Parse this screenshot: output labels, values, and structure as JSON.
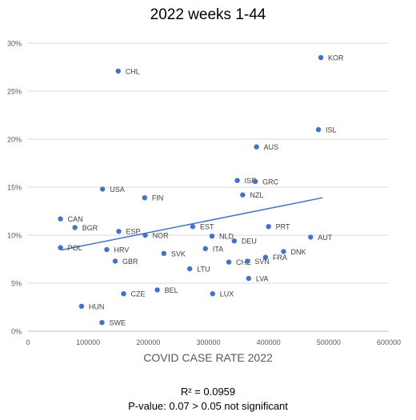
{
  "chart_data": {
    "type": "scatter",
    "title": "2022 weeks 1-44",
    "xlabel": "COVID CASE RATE 2022",
    "ylabel": "",
    "xlim": [
      0,
      600000
    ],
    "ylim": [
      0,
      0.3
    ],
    "x_ticks": [
      {
        "value": 0,
        "label": "0"
      },
      {
        "value": 100000,
        "label": "100000"
      },
      {
        "value": 200000,
        "label": "200000"
      },
      {
        "value": 300000,
        "label": "300000"
      },
      {
        "value": 400000,
        "label": "400000"
      },
      {
        "value": 500000,
        "label": "500000"
      },
      {
        "value": 600000,
        "label": "600000"
      }
    ],
    "y_ticks": [
      {
        "value": 0,
        "label": "0%"
      },
      {
        "value": 0.05,
        "label": "5%"
      },
      {
        "value": 0.1,
        "label": "10%"
      },
      {
        "value": 0.15,
        "label": "15%"
      },
      {
        "value": 0.2,
        "label": "20%"
      },
      {
        "value": 0.25,
        "label": "25%"
      },
      {
        "value": 0.3,
        "label": "30%"
      }
    ],
    "grid": "horizontal",
    "point_color": "#4472C4",
    "trendline_color": "#4472C4",
    "trendline": {
      "x": [
        55000,
        490000
      ],
      "y": [
        0.0845,
        0.139
      ]
    },
    "points": [
      {
        "label": "KOR",
        "x": 487000,
        "y": 0.285
      },
      {
        "label": "CHL",
        "x": 150000,
        "y": 0.271
      },
      {
        "label": "ISL",
        "x": 483000,
        "y": 0.21
      },
      {
        "label": "AUS",
        "x": 380000,
        "y": 0.192
      },
      {
        "label": "ISR",
        "x": 348000,
        "y": 0.157
      },
      {
        "label": "GRC",
        "x": 378000,
        "y": 0.156
      },
      {
        "label": "USA",
        "x": 124000,
        "y": 0.148
      },
      {
        "label": "NZL",
        "x": 357000,
        "y": 0.142
      },
      {
        "label": "FIN",
        "x": 194000,
        "y": 0.139
      },
      {
        "label": "CAN",
        "x": 54000,
        "y": 0.117
      },
      {
        "label": "BGR",
        "x": 78000,
        "y": 0.108
      },
      {
        "label": "EST",
        "x": 274000,
        "y": 0.109
      },
      {
        "label": "PRT",
        "x": 400000,
        "y": 0.109
      },
      {
        "label": "ESP",
        "x": 151000,
        "y": 0.104
      },
      {
        "label": "NOR",
        "x": 195000,
        "y": 0.1
      },
      {
        "label": "NLD",
        "x": 306000,
        "y": 0.099
      },
      {
        "label": "AUT",
        "x": 470000,
        "y": 0.098
      },
      {
        "label": "DEU",
        "x": 343000,
        "y": 0.094
      },
      {
        "label": "POL",
        "x": 54000,
        "y": 0.087
      },
      {
        "label": "HRV",
        "x": 131000,
        "y": 0.085
      },
      {
        "label": "ITA",
        "x": 295000,
        "y": 0.086
      },
      {
        "label": "DNK",
        "x": 425000,
        "y": 0.083
      },
      {
        "label": "SVK",
        "x": 226000,
        "y": 0.081
      },
      {
        "label": "FRA",
        "x": 395000,
        "y": 0.077
      },
      {
        "label": "GBR",
        "x": 145000,
        "y": 0.073
      },
      {
        "label": "CHE",
        "x": 334000,
        "y": 0.072
      },
      {
        "label": "SVN",
        "x": 365000,
        "y": 0.073
      },
      {
        "label": "LTU",
        "x": 269000,
        "y": 0.065
      },
      {
        "label": "LVA",
        "x": 367000,
        "y": 0.055
      },
      {
        "label": "BEL",
        "x": 215000,
        "y": 0.043
      },
      {
        "label": "CZE",
        "x": 159000,
        "y": 0.039
      },
      {
        "label": "LUX",
        "x": 307000,
        "y": 0.039
      },
      {
        "label": "HUN",
        "x": 89000,
        "y": 0.026
      },
      {
        "label": "SWE",
        "x": 123000,
        "y": 0.009
      }
    ]
  },
  "stats": {
    "r_squared": "R² = 0.0959",
    "p_value": "P-value: 0.07 > 0.05 not significant"
  }
}
